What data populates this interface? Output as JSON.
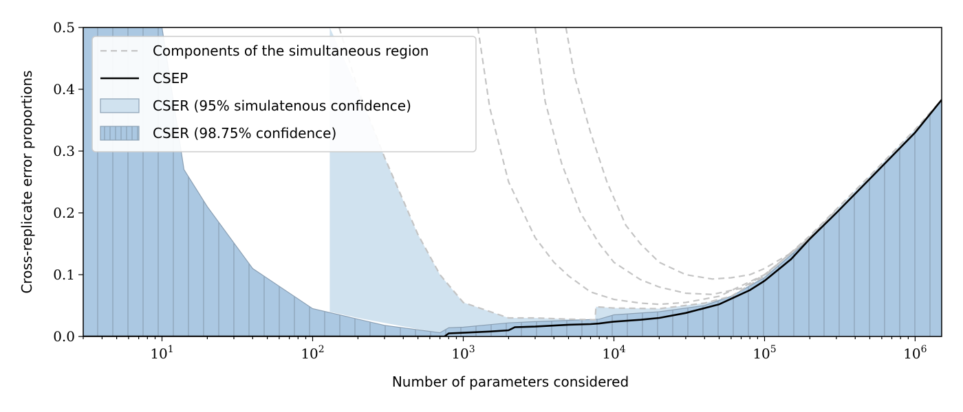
{
  "chart_data": {
    "type": "area",
    "xscale": "log",
    "xlim": [
      3,
      1500000
    ],
    "ylim": [
      0.0,
      0.5
    ],
    "xlabel": "Number of parameters considered",
    "ylabel": "Cross-replicate error proportions",
    "x_ticks": [
      {
        "value": 10,
        "base": "10",
        "exp": "1"
      },
      {
        "value": 100,
        "base": "10",
        "exp": "2"
      },
      {
        "value": 1000,
        "base": "10",
        "exp": "3"
      },
      {
        "value": 10000,
        "base": "10",
        "exp": "4"
      },
      {
        "value": 100000,
        "base": "10",
        "exp": "5"
      },
      {
        "value": 1000000,
        "base": "10",
        "exp": "6"
      }
    ],
    "y_ticks": [
      "0.0",
      "0.1",
      "0.2",
      "0.3",
      "0.4",
      "0.5"
    ],
    "legend": {
      "position": "upper-left",
      "entries": [
        "Components of the simultaneous region",
        "CSEP",
        "CSER (95% simulatenous confidence)",
        "CSER (98.75% confidence)"
      ]
    },
    "series": [
      {
        "name": "CSEP",
        "style": "solid-black",
        "x": [
          3,
          750,
          800,
          1000,
          1500,
          2000,
          2200,
          3000,
          5000,
          7000,
          8000,
          10000,
          15000,
          20000,
          30000,
          50000,
          80000,
          100000,
          150000,
          200000,
          300000,
          500000,
          1000000,
          1500000
        ],
        "y": [
          0.0,
          0.0,
          0.005,
          0.006,
          0.008,
          0.01,
          0.015,
          0.016,
          0.019,
          0.02,
          0.021,
          0.024,
          0.027,
          0.03,
          0.038,
          0.052,
          0.075,
          0.09,
          0.125,
          0.158,
          0.2,
          0.255,
          0.33,
          0.383
        ]
      },
      {
        "name": "CSER (95% simulatenous confidence)",
        "style": "light-fill",
        "x": [
          130,
          200,
          300,
          500,
          700,
          1000,
          2000,
          3000,
          5000,
          7500,
          7600,
          10000,
          20000,
          40000,
          60000,
          100000,
          200000,
          300000,
          500000,
          1000000,
          1500000
        ],
        "y_upper": [
          0.5,
          0.4,
          0.29,
          0.165,
          0.1,
          0.055,
          0.03,
          0.03,
          0.028,
          0.027,
          0.048,
          0.046,
          0.045,
          0.054,
          0.065,
          0.098,
          0.163,
          0.206,
          0.26,
          0.335,
          0.383
        ],
        "y_lower": [
          0.04,
          0.03,
          0.022,
          0.012,
          0.006,
          0.012,
          0.016,
          0.018,
          0.02,
          0.021,
          0.022,
          0.025,
          0.03,
          0.045,
          0.06,
          0.09,
          0.158,
          0.2,
          0.255,
          0.33,
          0.383
        ]
      },
      {
        "name": "CSER (98.75% confidence)",
        "style": "hatched-fill",
        "x": [
          3,
          10,
          14,
          20,
          40,
          100,
          300,
          700,
          800,
          1000,
          2000,
          3000,
          5000,
          8000,
          10000,
          20000,
          40000,
          60000,
          100000,
          200000,
          300000,
          500000,
          1000000,
          1500000
        ],
        "y_upper": [
          0.5,
          0.5,
          0.27,
          0.21,
          0.11,
          0.045,
          0.018,
          0.006,
          0.014,
          0.015,
          0.022,
          0.024,
          0.026,
          0.028,
          0.035,
          0.04,
          0.05,
          0.065,
          0.095,
          0.158,
          0.2,
          0.255,
          0.33,
          0.383
        ],
        "y_lower": [
          0.0,
          0.0,
          0.0,
          0.0,
          0.0,
          0.0,
          0.0,
          0.0,
          0.0,
          0.0,
          0.0,
          0.0,
          0.0,
          0.0,
          0.0,
          0.0,
          0.0,
          0.0,
          0.0,
          0.0,
          0.0,
          0.0,
          0.0,
          0.0
        ]
      },
      {
        "name": "Components of the simultaneous region",
        "style": "dashed-gray",
        "curves": [
          {
            "x": [
              150,
              200,
              300,
              500,
              700,
              1000,
              2000,
              3000,
              5000,
              7500,
              7600,
              10000,
              20000,
              40000,
              60000,
              100000,
              200000,
              300000,
              500000,
              1000000,
              1500000
            ],
            "y": [
              0.5,
              0.4,
              0.29,
              0.165,
              0.1,
              0.055,
              0.03,
              0.03,
              0.028,
              0.027,
              0.048,
              0.046,
              0.045,
              0.054,
              0.065,
              0.098,
              0.163,
              0.206,
              0.26,
              0.335,
              0.383
            ]
          },
          {
            "x": [
              1250,
              1500,
              2000,
              3000,
              4000,
              5000,
              7000,
              10000,
              15000,
              20000,
              30000,
              50000,
              100000,
              200000,
              300000
            ],
            "y": [
              0.5,
              0.37,
              0.25,
              0.16,
              0.12,
              0.098,
              0.072,
              0.06,
              0.054,
              0.052,
              0.055,
              0.065,
              0.1,
              0.16,
              0.205
            ]
          },
          {
            "x": [
              3000,
              3500,
              4500,
              6000,
              8000,
              10000,
              15000,
              20000,
              30000,
              45000,
              70000,
              100000,
              200000
            ],
            "y": [
              0.5,
              0.38,
              0.28,
              0.2,
              0.15,
              0.12,
              0.092,
              0.08,
              0.07,
              0.068,
              0.078,
              0.1,
              0.16
            ]
          },
          {
            "x": [
              4800,
              5500,
              7000,
              9000,
              12000,
              15000,
              20000,
              30000,
              45000,
              60000,
              80000,
              100000,
              150000,
              200000
            ],
            "y": [
              0.5,
              0.42,
              0.33,
              0.25,
              0.18,
              0.15,
              0.12,
              0.1,
              0.093,
              0.095,
              0.1,
              0.11,
              0.135,
              0.16
            ]
          }
        ]
      }
    ]
  }
}
